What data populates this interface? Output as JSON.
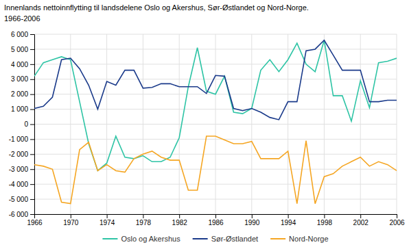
{
  "chart_data": {
    "type": "line",
    "title": "Innenlands nettoinnflytting til landsdelene Oslo og Akershus, Sør-Østlandet og Nord-Norge.",
    "subtitle": "1966-2006",
    "x": [
      1966,
      1967,
      1968,
      1969,
      1970,
      1971,
      1972,
      1973,
      1974,
      1975,
      1976,
      1977,
      1978,
      1979,
      1980,
      1981,
      1982,
      1983,
      1984,
      1985,
      1986,
      1987,
      1988,
      1989,
      1990,
      1991,
      1992,
      1993,
      1994,
      1995,
      1996,
      1997,
      1998,
      1999,
      2000,
      2001,
      2002,
      2003,
      2004,
      2005,
      2006
    ],
    "series": [
      {
        "name": "Oslo og Akershus",
        "color": "#2EC4A5",
        "values": [
          3200,
          4100,
          4300,
          4500,
          4300,
          1500,
          -1300,
          -3100,
          -2600,
          -800,
          -2200,
          -2300,
          -2100,
          -2500,
          -2500,
          -2200,
          -900,
          2500,
          5100,
          2200,
          2000,
          3200,
          800,
          700,
          1050,
          3600,
          4300,
          3500,
          4300,
          5400,
          4000,
          3500,
          5600,
          1900,
          1900,
          200,
          2900,
          1100,
          4100,
          4200,
          4400
        ]
      },
      {
        "name": "Sør-Østlandet",
        "color": "#1a3a8a",
        "values": [
          1050,
          1200,
          1800,
          4300,
          4400,
          3700,
          2600,
          1000,
          2850,
          2600,
          3600,
          3600,
          2400,
          2450,
          2700,
          2700,
          2500,
          2500,
          2500,
          2050,
          3250,
          3200,
          1050,
          900,
          1050,
          800,
          450,
          300,
          1500,
          1500,
          4900,
          5000,
          5600,
          4600,
          3600,
          3600,
          3600,
          1500,
          1500,
          1600,
          1600
        ]
      },
      {
        "name": "Nord-Norge",
        "color": "#F5A623",
        "values": [
          -2700,
          -2800,
          -3000,
          -5200,
          -5300,
          -1700,
          -1200,
          -3100,
          -2700,
          -3100,
          -3200,
          -2300,
          -2000,
          -1800,
          -2200,
          -2400,
          -2400,
          -4400,
          -4400,
          -800,
          -800,
          -1050,
          -1300,
          -1300,
          -1150,
          -2300,
          -2300,
          -2300,
          -1800,
          -5300,
          -1100,
          -5300,
          -3500,
          -3300,
          -2800,
          -2500,
          -2200,
          -2800,
          -2500,
          -2700,
          -3100
        ]
      }
    ],
    "xlim": [
      1966,
      2006
    ],
    "xticks": [
      1966,
      1970,
      1974,
      1978,
      1982,
      1986,
      1990,
      1994,
      1998,
      2002,
      2006
    ],
    "ylim": [
      -6000,
      6000
    ],
    "yticks": [
      {
        "value": -6000,
        "label": "-6 000"
      },
      {
        "value": -5000,
        "label": "-5 000"
      },
      {
        "value": -4000,
        "label": "-4 000"
      },
      {
        "value": -3000,
        "label": "-3 000"
      },
      {
        "value": -2000,
        "label": "-2 000"
      },
      {
        "value": -1000,
        "label": "-1 000"
      },
      0,
      {
        "value": 1000,
        "label": "1 000"
      },
      {
        "value": 2000,
        "label": "2 000"
      },
      {
        "value": 3000,
        "label": "3 000"
      },
      {
        "value": 4000,
        "label": "4 000"
      },
      {
        "value": 5000,
        "label": "5 000"
      },
      {
        "value": 6000,
        "label": "6 000"
      }
    ],
    "grid": true,
    "legend": "bottom"
  }
}
